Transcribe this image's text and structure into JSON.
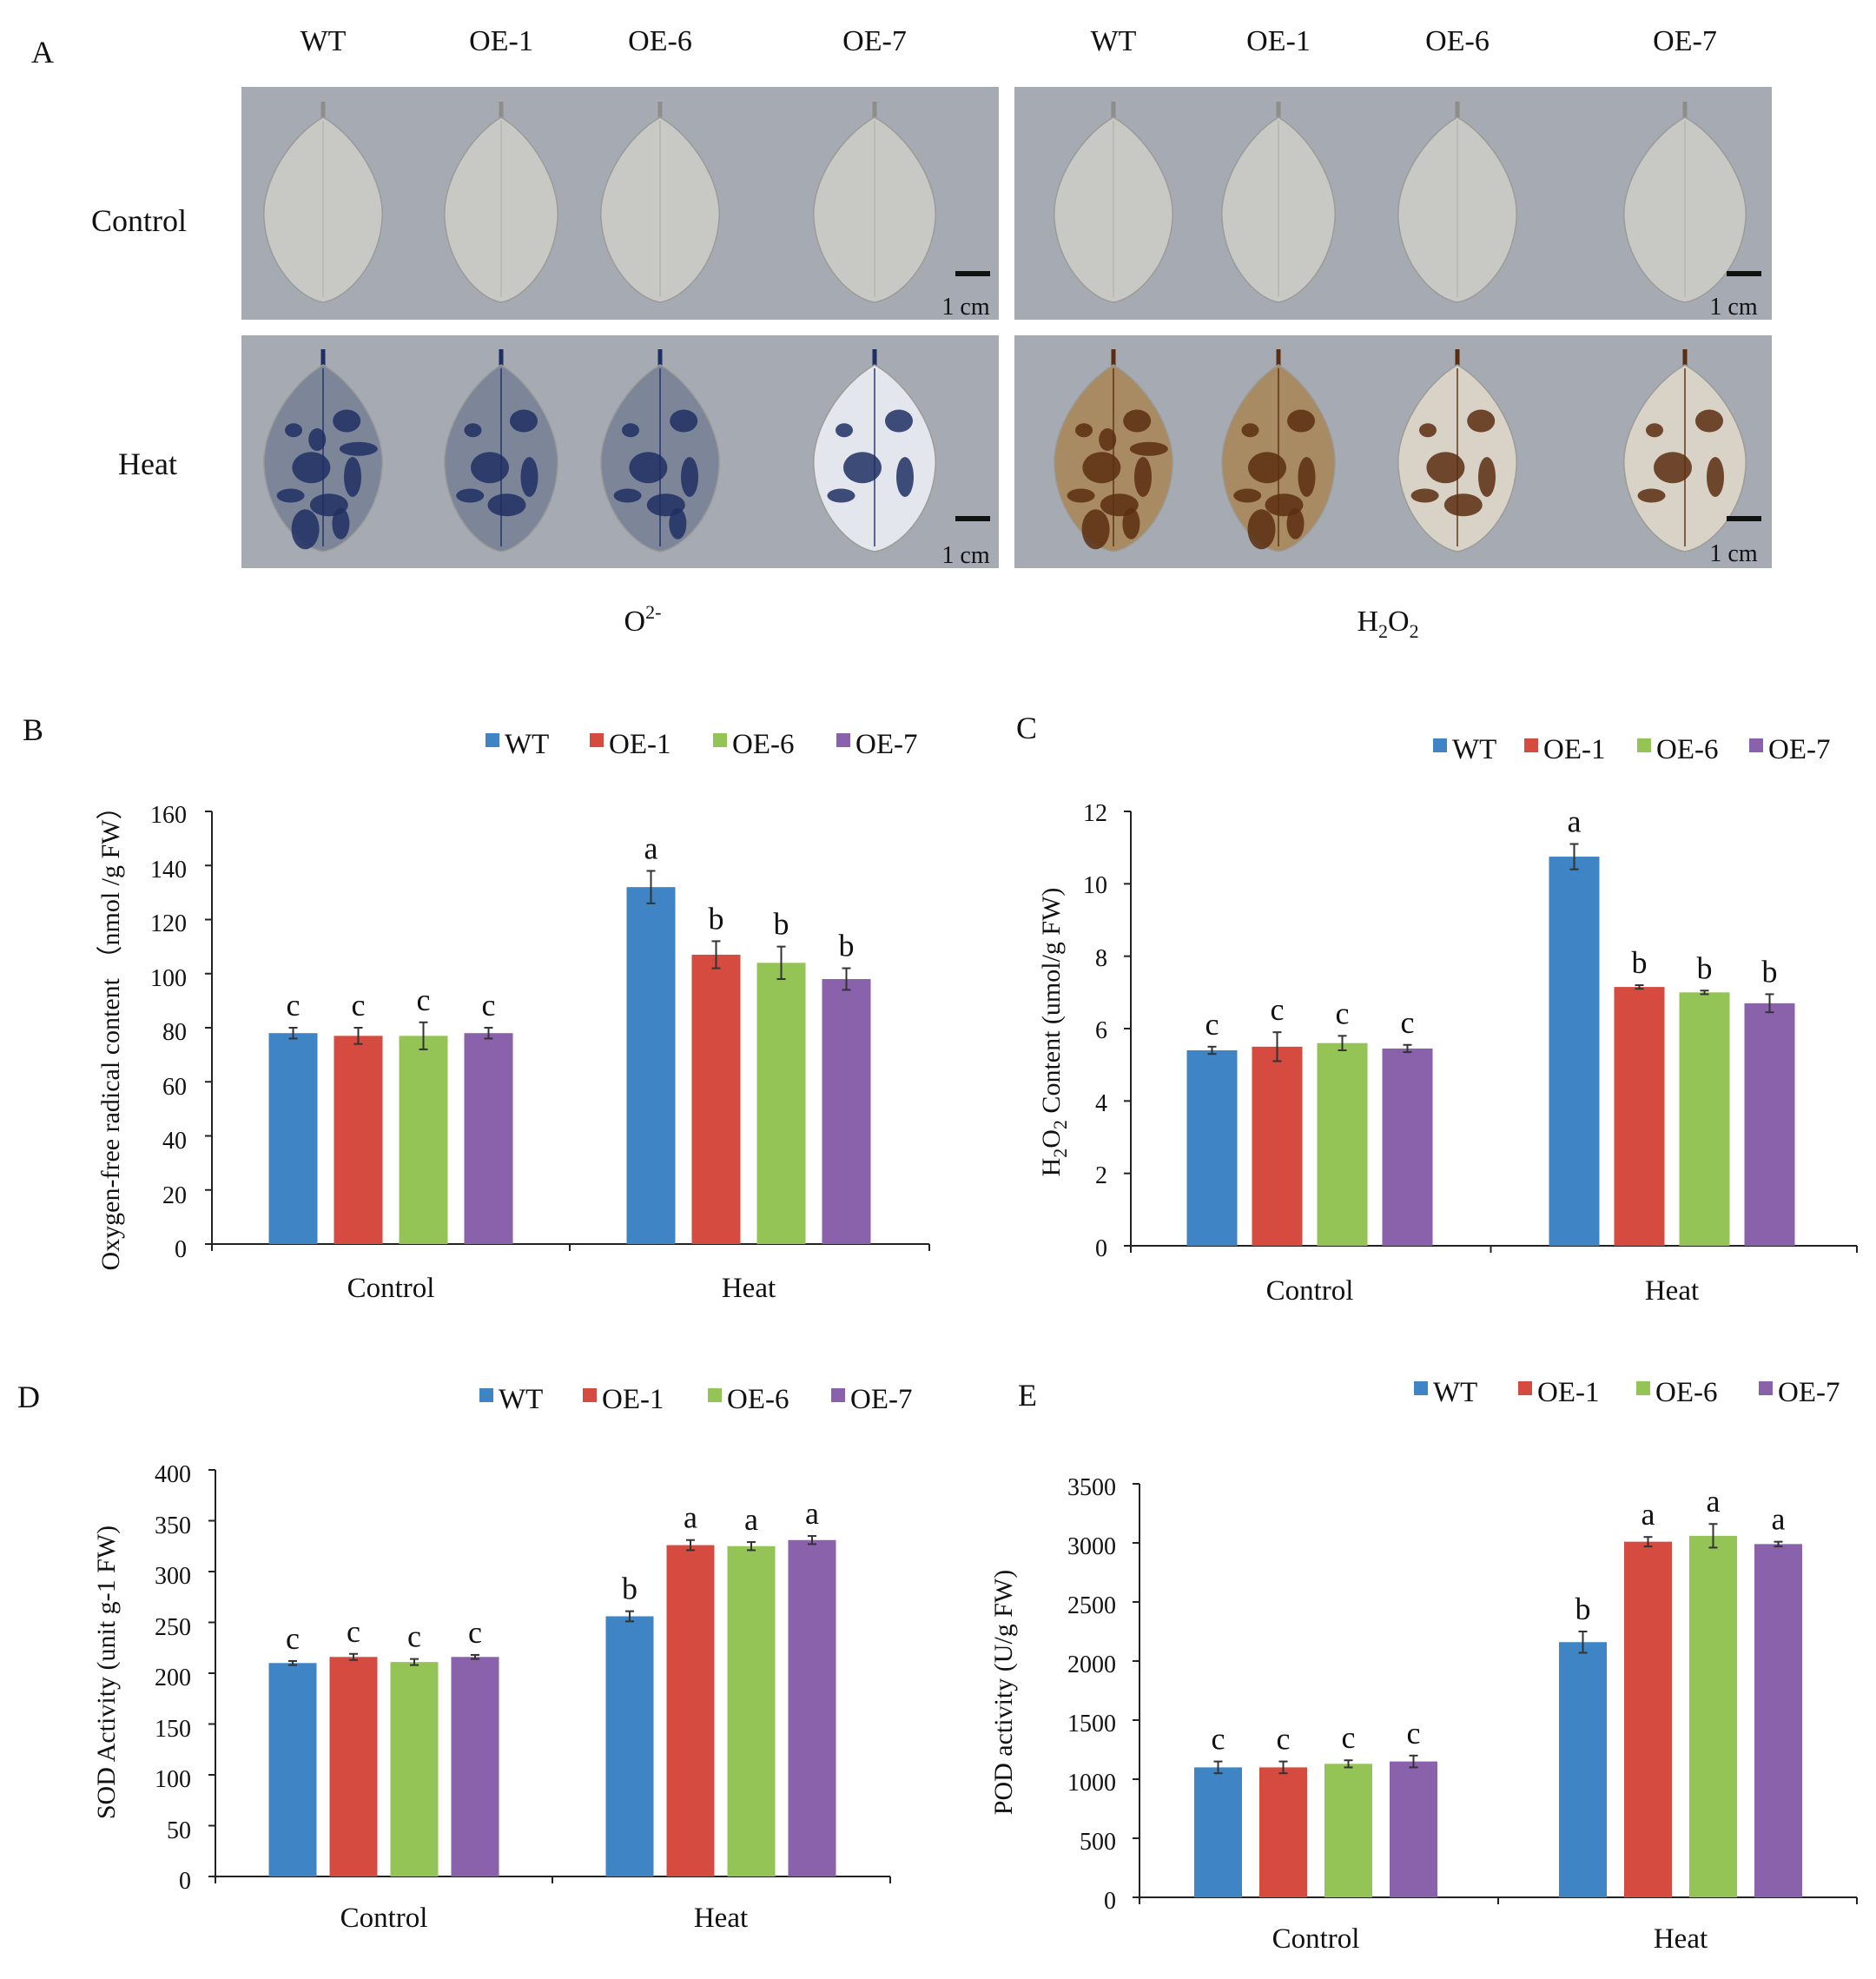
{
  "panel_a": {
    "label": "A",
    "columns_left": [
      "WT",
      "OE-1",
      "OE-6",
      "OE-7"
    ],
    "columns_right": [
      "WT",
      "OE-1",
      "OE-6",
      "OE-7"
    ],
    "rows": [
      "Control",
      "Heat"
    ],
    "scale_label": "1 cm",
    "left_caption": {
      "base": "O",
      "sup": "2-"
    },
    "right_caption": {
      "parts": [
        "H",
        "2",
        "O",
        "2"
      ]
    },
    "colors": {
      "background": "#a6aab3",
      "leaf_control": "#c8c8c4",
      "stain_o2": "#1f2f63",
      "stain_h2o2": "#5a2e10"
    }
  },
  "chart_data": [
    {
      "id": "B",
      "type": "bar",
      "categories": [
        "Control",
        "Heat"
      ],
      "series": [
        {
          "name": "WT",
          "color": "#3f84c4",
          "values": [
            78,
            132
          ],
          "errors": [
            2,
            6
          ],
          "letters": [
            "c",
            "a"
          ]
        },
        {
          "name": "OE-1",
          "color": "#d64b3f",
          "values": [
            77,
            107
          ],
          "errors": [
            3,
            5
          ],
          "letters": [
            "c",
            "b"
          ]
        },
        {
          "name": "OE-6",
          "color": "#94c356",
          "values": [
            77,
            104
          ],
          "errors": [
            5,
            6
          ],
          "letters": [
            "c",
            "b"
          ]
        },
        {
          "name": "OE-7",
          "color": "#8a62ab",
          "values": [
            78,
            98
          ],
          "errors": [
            2,
            4
          ],
          "letters": [
            "c",
            "b"
          ]
        }
      ],
      "ylabel": "Oxygen-free radical content （nmol /g FW）",
      "ylim": [
        0,
        160
      ],
      "yticks": [
        "0",
        "20",
        "40",
        "60",
        "80",
        "100",
        "120",
        "140",
        "160"
      ],
      "legend": "top-right"
    },
    {
      "id": "C",
      "type": "bar",
      "categories": [
        "Control",
        "Heat"
      ],
      "series": [
        {
          "name": "WT",
          "color": "#3f84c4",
          "values": [
            5.4,
            10.75
          ],
          "errors": [
            0.1,
            0.35
          ],
          "letters": [
            "c",
            "a"
          ]
        },
        {
          "name": "OE-1",
          "color": "#d64b3f",
          "values": [
            5.5,
            7.15
          ],
          "errors": [
            0.4,
            0.05
          ],
          "letters": [
            "c",
            "b"
          ]
        },
        {
          "name": "OE-6",
          "color": "#94c356",
          "values": [
            5.6,
            7.0
          ],
          "errors": [
            0.2,
            0.05
          ],
          "letters": [
            "c",
            "b"
          ]
        },
        {
          "name": "OE-7",
          "color": "#8a62ab",
          "values": [
            5.45,
            6.7
          ],
          "errors": [
            0.1,
            0.25
          ],
          "letters": [
            "c",
            "b"
          ]
        }
      ],
      "ylabel_parts": [
        "H",
        "2",
        "O",
        "2",
        " Content (umol/g FW)"
      ],
      "ylim": [
        0,
        12
      ],
      "yticks": [
        "0",
        "2",
        "4",
        "6",
        "8",
        "10",
        "12"
      ],
      "legend": "top-right"
    },
    {
      "id": "D",
      "type": "bar",
      "categories": [
        "Control",
        "Heat"
      ],
      "series": [
        {
          "name": "WT",
          "color": "#3f84c4",
          "values": [
            210,
            256
          ],
          "errors": [
            2,
            5
          ],
          "letters": [
            "c",
            "b"
          ]
        },
        {
          "name": "OE-1",
          "color": "#d64b3f",
          "values": [
            216,
            326
          ],
          "errors": [
            3,
            5
          ],
          "letters": [
            "c",
            "a"
          ]
        },
        {
          "name": "OE-6",
          "color": "#94c356",
          "values": [
            211,
            325
          ],
          "errors": [
            3,
            4
          ],
          "letters": [
            "c",
            "a"
          ]
        },
        {
          "name": "OE-7",
          "color": "#8a62ab",
          "values": [
            216,
            331
          ],
          "errors": [
            2,
            4
          ],
          "letters": [
            "c",
            "a"
          ]
        }
      ],
      "ylabel": "SOD Activity (unit g-1 FW)",
      "ylim": [
        0,
        400
      ],
      "yticks": [
        "0",
        "50",
        "100",
        "150",
        "200",
        "250",
        "300",
        "350",
        "400"
      ],
      "legend": "top-right"
    },
    {
      "id": "E",
      "type": "bar",
      "categories": [
        "Control",
        "Heat"
      ],
      "series": [
        {
          "name": "WT",
          "color": "#3f84c4",
          "values": [
            1100,
            2160
          ],
          "errors": [
            50,
            90
          ],
          "letters": [
            "c",
            "b"
          ]
        },
        {
          "name": "OE-1",
          "color": "#d64b3f",
          "values": [
            1100,
            3010
          ],
          "errors": [
            50,
            40
          ],
          "letters": [
            "c",
            "a"
          ]
        },
        {
          "name": "OE-6",
          "color": "#94c356",
          "values": [
            1130,
            3060
          ],
          "errors": [
            30,
            100
          ],
          "letters": [
            "c",
            "a"
          ]
        },
        {
          "name": "OE-7",
          "color": "#8a62ab",
          "values": [
            1150,
            2990
          ],
          "errors": [
            50,
            20
          ],
          "letters": [
            "c",
            "a"
          ]
        }
      ],
      "ylabel": "POD activity (U/g FW)",
      "ylim": [
        0,
        3500
      ],
      "yticks": [
        "0",
        "500",
        "1000",
        "1500",
        "2000",
        "2500",
        "3000",
        "3500"
      ],
      "legend": "top-right"
    }
  ]
}
